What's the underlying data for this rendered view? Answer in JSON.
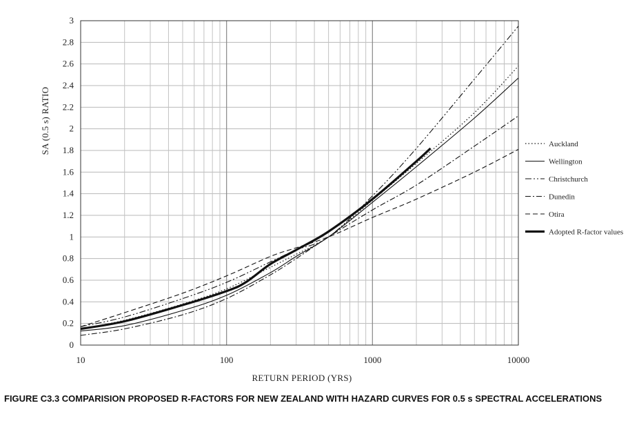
{
  "chart_data": {
    "type": "line",
    "caption": "FIGURE C3.3 COMPARISION PROPOSED R-FACTORS FOR NEW ZEALAND WITH HAZARD CURVES FOR 0.5 s SPECTRAL ACCELERATIONS",
    "xlabel": "RETURN PERIOD (YRS)",
    "ylabel": "SA (0.5 s) RATIO",
    "xscale": "log",
    "xlim": [
      10,
      10000
    ],
    "ylim": [
      0,
      3
    ],
    "xticks": [
      "10",
      "100",
      "1000",
      "10000"
    ],
    "yticks": [
      "0",
      "0.2",
      "0.4",
      "0.6",
      "0.8",
      "1",
      "1.2",
      "1.4",
      "1.6",
      "1.8",
      "2",
      "2.2",
      "2.4",
      "2.6",
      "2.8",
      "3"
    ],
    "grid": true,
    "legend_position": "right",
    "series": [
      {
        "name": "Auckland",
        "style": "dotted",
        "x": [
          10,
          20,
          50,
          100,
          200,
          300,
          500,
          1000,
          2000,
          5000,
          10000
        ],
        "y": [
          0.15,
          0.23,
          0.38,
          0.52,
          0.72,
          0.84,
          1.0,
          1.34,
          1.68,
          2.15,
          2.58
        ]
      },
      {
        "name": "Wellington",
        "style": "solid",
        "x": [
          10,
          20,
          50,
          100,
          200,
          300,
          500,
          1000,
          2000,
          5000,
          10000
        ],
        "y": [
          0.13,
          0.18,
          0.32,
          0.46,
          0.67,
          0.82,
          1.0,
          1.32,
          1.65,
          2.1,
          2.47
        ]
      },
      {
        "name": "Christchurch",
        "style": "dash-dot-dot",
        "x": [
          10,
          20,
          50,
          100,
          200,
          300,
          500,
          1000,
          2000,
          5000,
          10000
        ],
        "y": [
          0.17,
          0.26,
          0.43,
          0.58,
          0.77,
          0.88,
          1.0,
          1.38,
          1.82,
          2.46,
          2.95
        ]
      },
      {
        "name": "Dunedin",
        "style": "dash-dot",
        "x": [
          10,
          20,
          50,
          100,
          200,
          300,
          500,
          1000,
          2000,
          5000,
          10000
        ],
        "y": [
          0.09,
          0.15,
          0.28,
          0.43,
          0.65,
          0.8,
          1.0,
          1.25,
          1.48,
          1.84,
          2.12
        ]
      },
      {
        "name": "Otira",
        "style": "dashed",
        "x": [
          10,
          20,
          50,
          100,
          200,
          300,
          500,
          1000,
          2000,
          5000,
          10000
        ],
        "y": [
          0.17,
          0.3,
          0.48,
          0.64,
          0.82,
          0.9,
          1.0,
          1.18,
          1.35,
          1.6,
          1.81
        ]
      },
      {
        "name": "Adopted R-factor values",
        "style": "thick",
        "x": [
          10,
          20,
          50,
          100,
          135,
          200,
          300,
          500,
          1000,
          2000,
          2500
        ],
        "y": [
          0.15,
          0.22,
          0.37,
          0.5,
          0.58,
          0.75,
          0.88,
          1.05,
          1.35,
          1.7,
          1.82
        ]
      }
    ]
  }
}
